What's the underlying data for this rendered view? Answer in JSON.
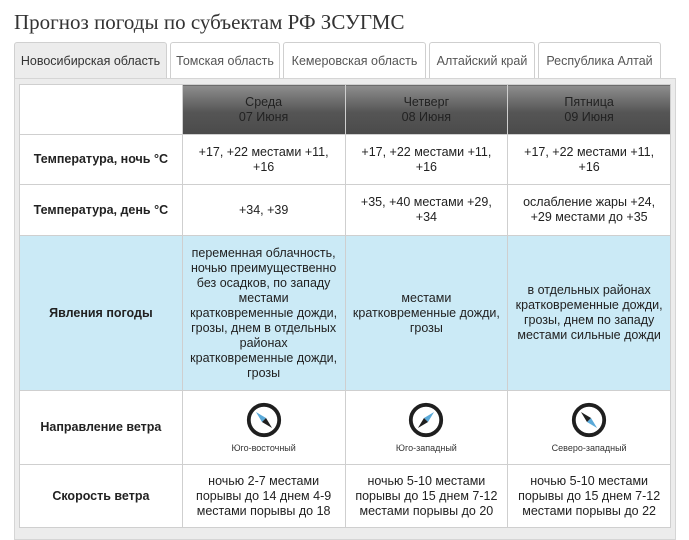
{
  "page": {
    "title": "Прогноз погоды по субъектам РФ ЗСУГМС"
  },
  "tabs": [
    {
      "label": "Новосибирская область",
      "active": true
    },
    {
      "label": "Томская область",
      "active": false
    },
    {
      "label": "Кемеровская область",
      "active": false
    },
    {
      "label": "Алтайский край",
      "active": false
    },
    {
      "label": "Республика Алтай",
      "active": false
    }
  ],
  "days": [
    {
      "weekday": "Среда",
      "date": "07 Июня"
    },
    {
      "weekday": "Четверг",
      "date": "08 Июня"
    },
    {
      "weekday": "Пятница",
      "date": "09 Июня"
    }
  ],
  "rows": {
    "night_temp": {
      "label": "Температура, ночь °С",
      "values": [
        "+17, +22 местами +11, +16",
        "+17, +22 местами +11, +16",
        "+17, +22 местами +11, +16"
      ]
    },
    "day_temp": {
      "label": "Температура, день °С",
      "values": [
        "+34, +39",
        "+35, +40 местами +29, +34",
        "ослабление жары +24, +29 местами до +35"
      ]
    },
    "phenomena": {
      "label": "Явления погоды",
      "values": [
        "переменная облачность, ночью преимущественно без осадков, по западу местами кратковременные дожди, грозы, днем в отдельных районах кратковременные дожди, грозы",
        "местами кратковременные дожди, грозы",
        "в отдельных районах кратковременные дожди, грозы, днем по западу местами сильные дожди"
      ]
    },
    "wind_direction": {
      "label": "Направление ветра",
      "values": [
        "Юго-восточный",
        "Юго-западный",
        "Северо-западный"
      ],
      "icon": "compass-icon",
      "arrow_color": "#5aa9d8",
      "ring_color": "#1f1f1f"
    },
    "wind_speed": {
      "label": "Скорость ветра",
      "values": [
        "ночью 2-7 местами порывы до 14 днем 4-9 местами порывы до 18",
        "ночью 5-10 местами порывы до 15 днем 7-12 местами порывы до 20",
        "ночью 5-10 местами порывы до 15 днем 7-12 местами порывы до 22"
      ]
    }
  }
}
